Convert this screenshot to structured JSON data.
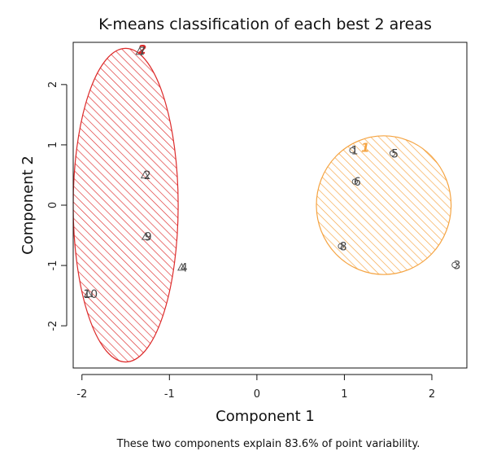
{
  "chart_data": {
    "type": "scatter",
    "title": "K-means classification of each best 2 areas",
    "xlabel": "Component 1",
    "ylabel": "Component 2",
    "xlim": [
      -2.1,
      2.4
    ],
    "ylim": [
      -2.7,
      2.7
    ],
    "xticks": [
      -2,
      -1,
      0,
      1,
      2
    ],
    "yticks": [
      -2,
      -1,
      0,
      1,
      2
    ],
    "grid": false,
    "caption": "These two components explain 83.6% of point variability.",
    "clusters": [
      {
        "label": "2",
        "color": "#dd2a2a",
        "center": [
          -1.5,
          0
        ],
        "semi_axes": [
          0.6,
          2.6
        ],
        "label_at": [
          -1.31,
          2.58
        ],
        "points": [
          {
            "label": "7",
            "x": -1.34,
            "y": 2.55,
            "marker": "triangle"
          },
          {
            "label": "2",
            "x": -1.28,
            "y": 0.5,
            "marker": "triangle"
          },
          {
            "label": "9",
            "x": -1.27,
            "y": -0.52,
            "marker": "triangle"
          },
          {
            "label": "4",
            "x": -0.86,
            "y": -1.03,
            "marker": "triangle"
          },
          {
            "label": "10",
            "x": -1.93,
            "y": -1.47,
            "marker": "triangle"
          }
        ]
      },
      {
        "label": "1",
        "color": "#f5a442",
        "center": [
          1.45,
          0
        ],
        "semi_axes": [
          0.77,
          1.15
        ],
        "label_at": [
          1.24,
          0.95
        ],
        "points": [
          {
            "label": "1",
            "x": 1.09,
            "y": 0.91,
            "marker": "circle"
          },
          {
            "label": "5",
            "x": 1.55,
            "y": 0.86,
            "marker": "circle"
          },
          {
            "label": "6",
            "x": 1.12,
            "y": 0.39,
            "marker": "circle"
          },
          {
            "label": "8",
            "x": 0.96,
            "y": -0.68,
            "marker": "circle"
          },
          {
            "label": "3",
            "x": 2.26,
            "y": -0.99,
            "marker": "circle"
          }
        ]
      }
    ]
  }
}
